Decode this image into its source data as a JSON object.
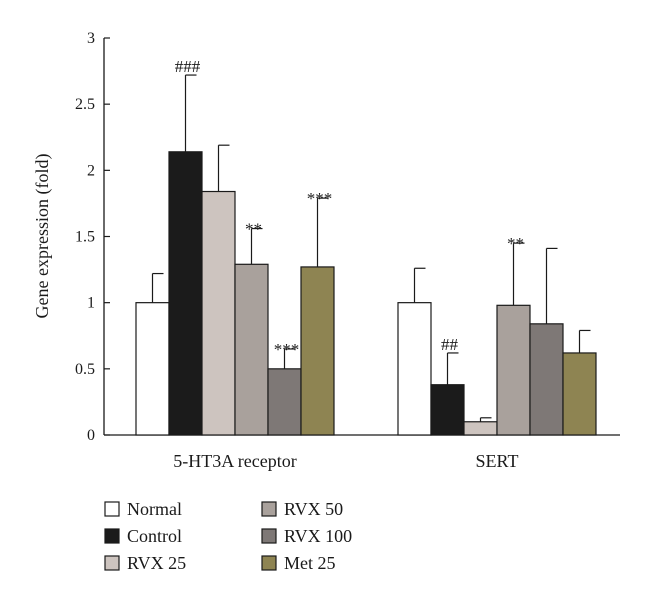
{
  "chart_data": {
    "type": "bar",
    "ylabel": "Gene expression (fold)",
    "ylim": [
      0,
      3
    ],
    "yticks": [
      0,
      0.5,
      1,
      1.5,
      2,
      2.5,
      3
    ],
    "ytick_labels": [
      "0",
      "0.5",
      "1",
      "1.5",
      "2",
      "2.5",
      "3"
    ],
    "categories": [
      "5-HT3A receptor",
      "SERT"
    ],
    "series": [
      {
        "name": "Normal",
        "color": "#ffffff",
        "values": [
          1.0,
          1.0
        ],
        "errors": [
          0.22,
          0.26
        ],
        "sig": [
          "",
          ""
        ]
      },
      {
        "name": "Control",
        "color": "#1b1b1b",
        "values": [
          2.14,
          0.38
        ],
        "errors": [
          0.58,
          0.24
        ],
        "sig": [
          "###",
          "##"
        ]
      },
      {
        "name": "RVX 25",
        "color": "#cdc4bf",
        "values": [
          1.84,
          0.1
        ],
        "errors": [
          0.35,
          0.03
        ],
        "sig": [
          "",
          ""
        ]
      },
      {
        "name": "RVX 50",
        "color": "#a9a19c",
        "values": [
          1.29,
          0.98
        ],
        "errors": [
          0.27,
          0.47
        ],
        "sig": [
          "**",
          "**"
        ]
      },
      {
        "name": "RVX 100",
        "color": "#7e7876",
        "values": [
          0.5,
          0.84
        ],
        "errors": [
          0.15,
          0.57
        ],
        "sig": [
          "***",
          ""
        ]
      },
      {
        "name": "Met 25",
        "color": "#8e8452",
        "values": [
          1.27,
          0.62
        ],
        "errors": [
          0.52,
          0.17
        ],
        "sig": [
          "***",
          ""
        ]
      }
    ]
  },
  "legend": [
    {
      "label": "Normal",
      "color": "#ffffff"
    },
    {
      "label": "RVX 50",
      "color": "#a9a19c"
    },
    {
      "label": "Control",
      "color": "#1b1b1b"
    },
    {
      "label": "RVX 100",
      "color": "#7e7876"
    },
    {
      "label": "RVX 25",
      "color": "#cdc4bf"
    },
    {
      "label": "Met 25",
      "color": "#8e8452"
    }
  ]
}
